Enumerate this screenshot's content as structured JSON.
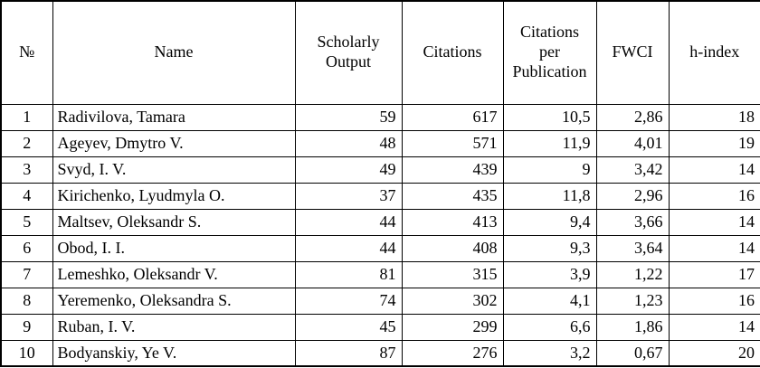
{
  "colors": {
    "border": "#000000",
    "text": "#000000",
    "background": "#ffffff"
  },
  "table": {
    "columns": [
      {
        "key": "num",
        "label": "№"
      },
      {
        "key": "name",
        "label": "Name"
      },
      {
        "key": "scholarly-output",
        "label": "Scholarly Output"
      },
      {
        "key": "citations",
        "label": "Citations"
      },
      {
        "key": "citations-per-publication",
        "label": "Citations per Publication"
      },
      {
        "key": "fwci",
        "label": "FWCI"
      },
      {
        "key": "h-index",
        "label": "h-index"
      }
    ],
    "rows": [
      [
        "1",
        "Radivilova, Tamara",
        "59",
        "617",
        "10,5",
        "2,86",
        "18"
      ],
      [
        "2",
        "Ageyev, Dmytro V.",
        "48",
        "571",
        "11,9",
        "4,01",
        "19"
      ],
      [
        "3",
        "Svyd, I. V.",
        "49",
        "439",
        "9",
        "3,42",
        "14"
      ],
      [
        "4",
        "Kirichenko, Lyudmyla O.",
        "37",
        "435",
        "11,8",
        "2,96",
        "16"
      ],
      [
        "5",
        "Maltsev, Oleksandr S.",
        "44",
        "413",
        "9,4",
        "3,66",
        "14"
      ],
      [
        "6",
        "Obod, I. I.",
        "44",
        "408",
        "9,3",
        "3,64",
        "14"
      ],
      [
        "7",
        "Lemeshko, Oleksandr V.",
        "81",
        "315",
        "3,9",
        "1,22",
        "17"
      ],
      [
        "8",
        "Yeremenko, Oleksandra S.",
        "74",
        "302",
        "4,1",
        "1,23",
        "16"
      ],
      [
        "9",
        "Ruban, I. V.",
        "45",
        "299",
        "6,6",
        "1,86",
        "14"
      ],
      [
        "10",
        "Bodyanskiy, Ye V.",
        "87",
        "276",
        "3,2",
        "0,67",
        "20"
      ]
    ]
  }
}
